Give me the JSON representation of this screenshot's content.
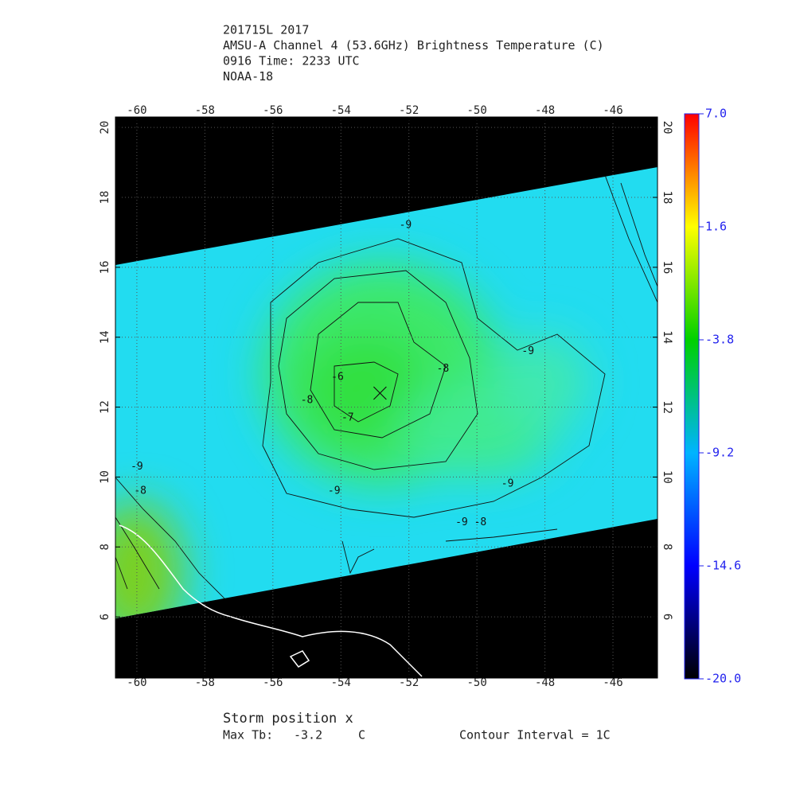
{
  "chart_data": {
    "type": "map",
    "title_lines": [
      "201715L 2017",
      "AMSU-A Channel 4 (53.6GHz) Brightness Temperature (C)",
      "0916 Time: 2233 UTC",
      "NOAA-18"
    ],
    "xlim": [
      -60.63,
      -44.69
    ],
    "ylim": [
      4.25,
      20.3
    ],
    "xticks": [
      -60,
      -58,
      -56,
      -54,
      -52,
      -50,
      -48,
      -46
    ],
    "yticks": [
      6,
      8,
      10,
      12,
      14,
      16,
      18,
      20
    ],
    "grid": true,
    "colorbar": {
      "lim": [
        -20,
        7
      ],
      "ticks": [
        {
          "value": 7,
          "label": "7.0"
        },
        1.6,
        -3.8,
        -9.2,
        -14.6,
        {
          "value": -20,
          "label": "-20.0"
        }
      ],
      "colors": [
        "#ff0000",
        "#ffff00",
        "#00d000",
        "#00b4ff",
        "#0000ff",
        "#000000"
      ]
    },
    "contour_labels": [
      {
        "value": -9,
        "lon": -52.1,
        "lat": 17.2
      },
      {
        "value": -9,
        "lon": -48.5,
        "lat": 13.6
      },
      {
        "value": -6,
        "lon": -54.1,
        "lat": 12.85
      },
      {
        "value": -8,
        "lon": -51.0,
        "lat": 13.1
      },
      {
        "value": -8,
        "lon": -55.0,
        "lat": 12.2
      },
      {
        "value": -7,
        "lon": -53.8,
        "lat": 11.7
      },
      {
        "value": -9,
        "lon": -54.2,
        "lat": 9.6
      },
      {
        "value": -9,
        "lon": -49.1,
        "lat": 9.8
      },
      {
        "value": -9,
        "lon": -60.0,
        "lat": 10.3
      },
      {
        "value": -8,
        "lon": -59.9,
        "lat": 9.6
      },
      {
        "value": -9,
        "lon": -50.45,
        "lat": 8.7
      },
      {
        "value": -8,
        "lon": -49.9,
        "lat": 8.7
      }
    ],
    "storm": {
      "lon": -52.85,
      "lat": 12.4
    },
    "footer": {
      "storm_label": "Storm position x",
      "max_label": "Max Tb:",
      "max_tb": -3.2,
      "max_unit": "C",
      "contour_interval": "Contour Interval = 1C"
    }
  }
}
